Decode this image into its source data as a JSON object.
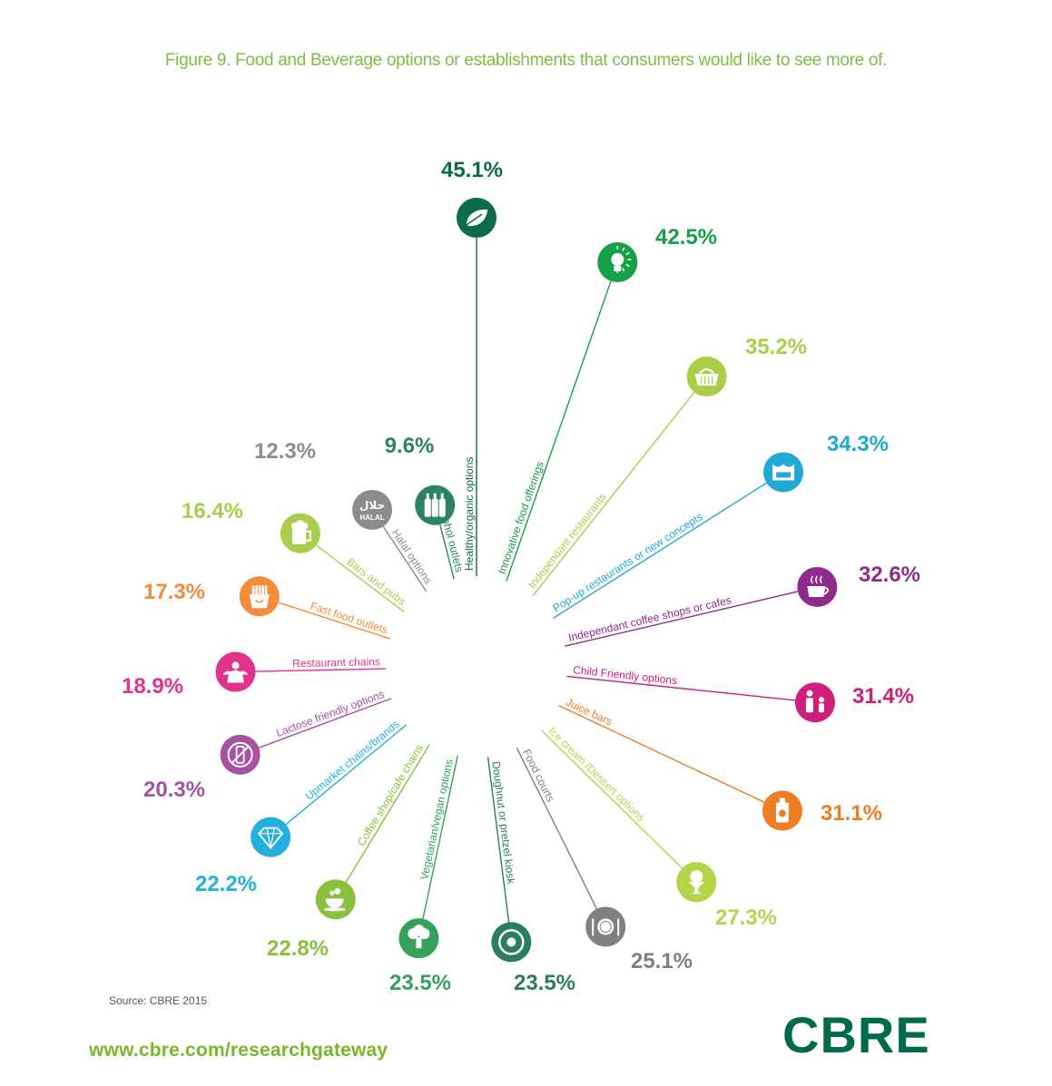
{
  "title": "Figure 9. Food and Beverage options or establishments that consumers would like to see more of.",
  "source": "Source: CBRE 2015",
  "url": "www.cbre.com/researchgateway",
  "logo": "CBRE",
  "chart_data": {
    "type": "radial-bar",
    "title": "Figure 9. Food and Beverage options or establishments that consumers would like to see more of.",
    "unit": "%",
    "categories": [
      "Healthy/organic options",
      "Innovative food offerings",
      "Independant restaurants",
      "Pop-up restaurants or new concepts",
      "Independant coffee shops or cafes",
      "Child Friendly options",
      "Juice bars",
      "Ice cream /Dessert options",
      "Food courts",
      "Doughnut or pretzel kiosk",
      "Vegetarian/vegan options",
      "Coffee shop/cafe chains",
      "Upmarket chains/brands",
      "Lactose friendly options",
      "Restaurant chains",
      "Fast food outlets",
      "Bars and pubs",
      "Halal options",
      "Alcohol outlets"
    ],
    "values": [
      45.1,
      42.5,
      35.2,
      34.3,
      32.6,
      31.4,
      31.1,
      27.3,
      25.1,
      23.5,
      23.5,
      22.8,
      22.2,
      20.3,
      18.9,
      17.3,
      16.4,
      12.3,
      9.6
    ],
    "value_labels": [
      "45.1%",
      "42.5%",
      "35.2%",
      "34.3%",
      "32.6%",
      "31.4%",
      "31.1%",
      "27.3%",
      "25.1%",
      "23.5%",
      "23.5%",
      "22.8%",
      "22.2%",
      "20.3%",
      "18.9%",
      "17.3%",
      "16.4%",
      "12.3%",
      "9.6%"
    ],
    "colors": [
      "#0b6b4c",
      "#17a049",
      "#a9cf46",
      "#21a9d6",
      "#8e2b8c",
      "#cf1f7a",
      "#ee7d23",
      "#b4d44a",
      "#808080",
      "#2a7d60",
      "#36a15d",
      "#8bbf3e",
      "#22b0de",
      "#a552a2",
      "#e0348c",
      "#f38d3d",
      "#a8ce4c",
      "#8c8c8c",
      "#2a8367"
    ],
    "icons": [
      "leaf-icon",
      "lightbulb-icon",
      "basket-icon",
      "food-truck-icon",
      "coffee-cup-icon",
      "family-icon",
      "juice-bottle-icon",
      "sundae-icon",
      "plate-icon",
      "doughnut-icon",
      "broccoli-icon",
      "teacup-icon",
      "diamond-icon",
      "no-milk-icon",
      "waiter-icon",
      "fries-icon",
      "beer-mug-icon",
      "halal-icon",
      "bottles-icon"
    ],
    "halal_icon_text": [
      "حلال",
      "HALAL"
    ]
  }
}
